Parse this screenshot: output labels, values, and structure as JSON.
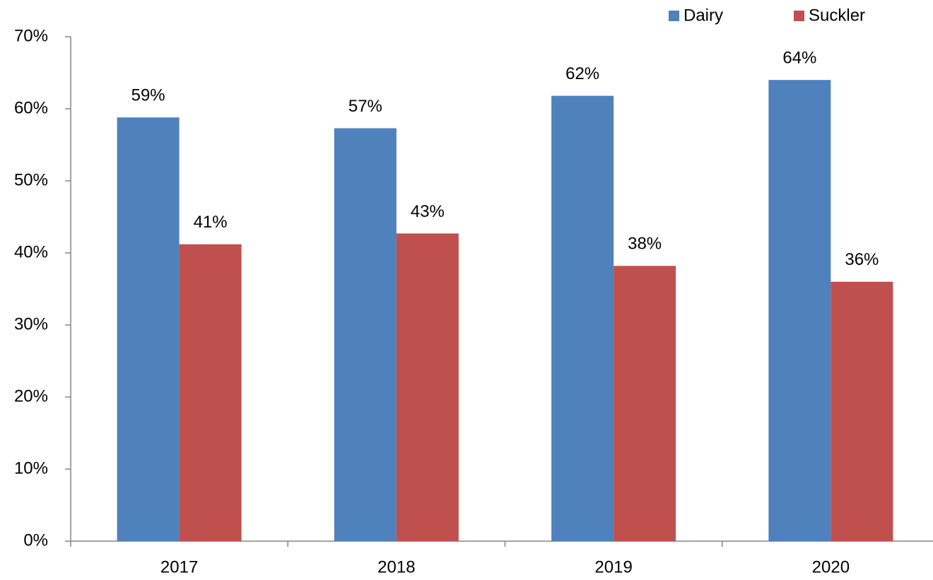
{
  "chart_data": {
    "type": "bar",
    "categories": [
      "2017",
      "2018",
      "2019",
      "2020"
    ],
    "series": [
      {
        "name": "Dairy",
        "color": "#4f81bd",
        "values": [
          58.8,
          57.3,
          61.8,
          64.0
        ],
        "value_labels": [
          "59%",
          "57%",
          "62%",
          "64%"
        ]
      },
      {
        "name": "Suckler",
        "color": "#c0504d",
        "values": [
          41.2,
          42.7,
          38.2,
          36.0
        ],
        "value_labels": [
          "41%",
          "43%",
          "38%",
          "36%"
        ]
      }
    ],
    "ylim": [
      0,
      70
    ],
    "yticks": [
      {
        "value": 0,
        "label": "0%"
      },
      {
        "value": 10,
        "label": "10%"
      },
      {
        "value": 20,
        "label": "20%"
      },
      {
        "value": 30,
        "label": "30%"
      },
      {
        "value": 40,
        "label": "40%"
      },
      {
        "value": 50,
        "label": "50%"
      },
      {
        "value": 60,
        "label": "60%"
      },
      {
        "value": 70,
        "label": "70%"
      }
    ],
    "legend": "top-right"
  }
}
